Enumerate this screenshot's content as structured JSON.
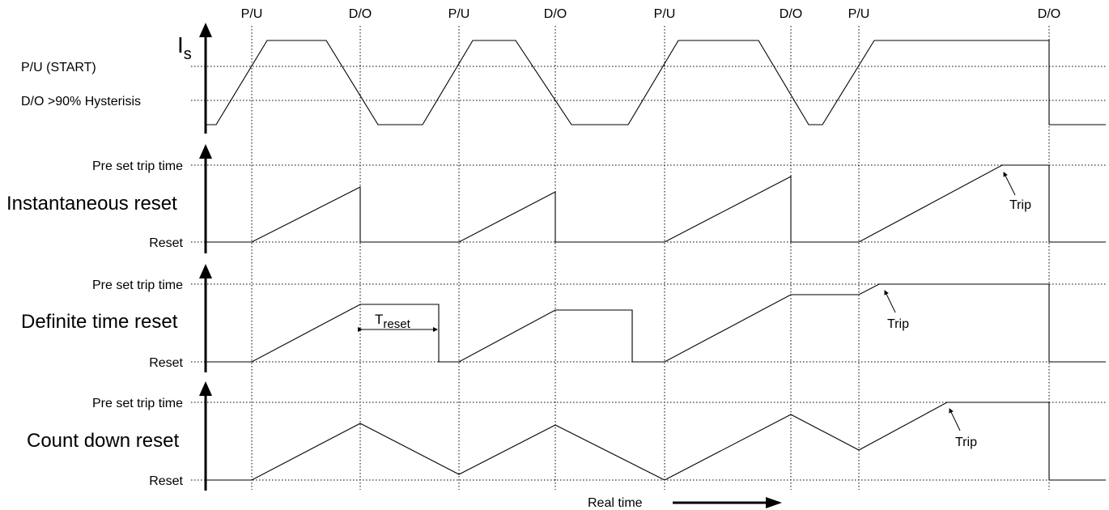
{
  "events": [
    "P/U",
    "D/O",
    "P/U",
    "D/O",
    "P/U",
    "D/O",
    "P/U",
    "D/O"
  ],
  "signal": {
    "symbol": "I",
    "subscript": "s",
    "pickup_label": "P/U  (START)",
    "dropoff_label": "D/O >90% Hysterisis"
  },
  "panels": [
    {
      "title": "Instantaneous reset",
      "top_label": "Pre set trip time",
      "bottom_label": "Reset",
      "trip_label": "Trip"
    },
    {
      "title": "Definite time reset",
      "top_label": "Pre set trip time",
      "bottom_label": "Reset",
      "trip_label": "Trip",
      "treset_main": "T",
      "treset_sub": "reset"
    },
    {
      "title": "Count down reset",
      "top_label": "Pre set trip time",
      "bottom_label": "Reset",
      "trip_label": "Trip"
    }
  ],
  "footer": {
    "time_label": "Real time"
  }
}
